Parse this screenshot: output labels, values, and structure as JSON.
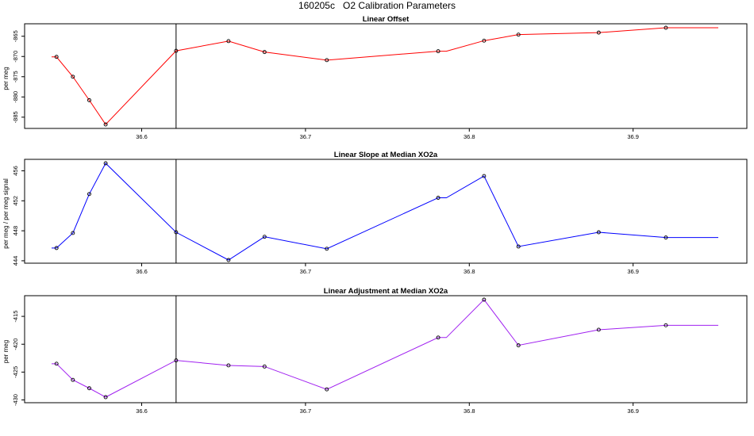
{
  "figure": {
    "title": "160205c   O2 Calibration Parameters"
  },
  "chart_data": [
    {
      "type": "line",
      "title": "Linear Offset",
      "ylabel": "per meg",
      "xlabel": "",
      "color": "#ff0000",
      "xlim": [
        36.543,
        36.955
      ],
      "ylim": [
        -887.5,
        -862.9
      ],
      "xticks": [
        36.6,
        36.7,
        36.8,
        36.9
      ],
      "yticks": [
        -865,
        -870,
        -875,
        -880,
        -885
      ],
      "vline_x": 36.621,
      "x": [
        36.545,
        36.548,
        36.558,
        36.568,
        36.578,
        36.621,
        36.653,
        36.675,
        36.713,
        36.781,
        36.786,
        36.809,
        36.83,
        36.879,
        36.92,
        36.952
      ],
      "y": [
        -870.1,
        -870.1,
        -875.0,
        -880.8,
        -886.8,
        -868.6,
        -866.2,
        -868.9,
        -870.9,
        -868.7,
        -868.7,
        -866.1,
        -864.6,
        -864.1,
        -862.9,
        -862.9
      ],
      "markers": [
        false,
        true,
        true,
        true,
        true,
        true,
        true,
        true,
        true,
        true,
        false,
        true,
        true,
        true,
        true,
        false
      ]
    },
    {
      "type": "line",
      "title": "Linear Slope at Median XO2a",
      "ylabel": "per meg / per meg signal",
      "xlabel": "",
      "color": "#0000ff",
      "xlim": [
        36.543,
        36.955
      ],
      "ylim": [
        444.05,
        457.0
      ],
      "xticks": [
        36.6,
        36.7,
        36.8,
        36.9
      ],
      "yticks": [
        444,
        448,
        452,
        456
      ],
      "vline_x": 36.621,
      "x": [
        36.545,
        36.548,
        36.558,
        36.568,
        36.578,
        36.621,
        36.653,
        36.675,
        36.713,
        36.781,
        36.786,
        36.809,
        36.83,
        36.879,
        36.92,
        36.952
      ],
      "y": [
        445.7,
        445.7,
        447.7,
        452.9,
        457.0,
        447.8,
        444.1,
        447.2,
        445.6,
        452.4,
        452.4,
        455.3,
        445.9,
        447.8,
        447.1,
        447.1
      ],
      "markers": [
        false,
        true,
        true,
        true,
        true,
        true,
        true,
        true,
        true,
        true,
        false,
        true,
        true,
        true,
        true,
        false
      ]
    },
    {
      "type": "line",
      "title": "Linear Adjustment at Median XO2a",
      "ylabel": "per meg",
      "xlabel": "",
      "color": "#a020f0",
      "xlim": [
        36.543,
        36.955
      ],
      "ylim": [
        -429.5,
        -412.0
      ],
      "xticks": [
        36.6,
        36.7,
        36.8,
        36.9
      ],
      "yticks": [
        -415,
        -420,
        -425,
        -430
      ],
      "vline_x": 36.621,
      "x": [
        36.545,
        36.548,
        36.558,
        36.568,
        36.578,
        36.621,
        36.653,
        36.675,
        36.713,
        36.781,
        36.786,
        36.809,
        36.83,
        36.879,
        36.92,
        36.952
      ],
      "y": [
        -423.5,
        -423.5,
        -426.4,
        -427.9,
        -429.5,
        -422.9,
        -423.8,
        -424.0,
        -428.1,
        -418.8,
        -418.8,
        -412.0,
        -420.2,
        -417.4,
        -416.6,
        -416.6
      ],
      "markers": [
        false,
        true,
        true,
        true,
        true,
        true,
        true,
        true,
        true,
        true,
        false,
        true,
        true,
        true,
        true,
        false
      ]
    }
  ]
}
